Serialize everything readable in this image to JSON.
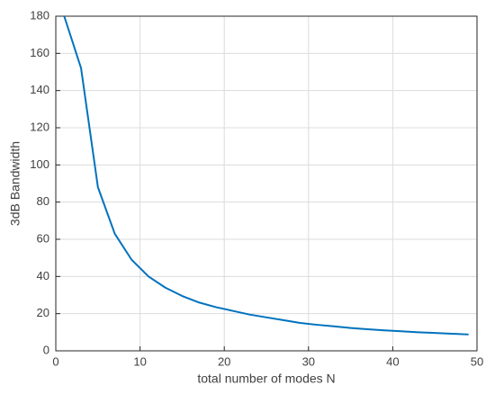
{
  "chart_data": {
    "type": "line",
    "x_label": "total number of modes N",
    "y_label": "3dB Bandwidth",
    "x": [
      1,
      3,
      5,
      7,
      9,
      11,
      13,
      15,
      17,
      19,
      21,
      23,
      25,
      27,
      29,
      31,
      33,
      35,
      37,
      39,
      41,
      43,
      45,
      47,
      49
    ],
    "series": [
      {
        "color": "#0072bd",
        "values": [
          180,
          152,
          88,
          63,
          49,
          40,
          34,
          29.5,
          26,
          23.5,
          21.5,
          19.5,
          18,
          16.5,
          15,
          14,
          13.2,
          12.3,
          11.6,
          11,
          10.5,
          10,
          9.6,
          9.2,
          8.8
        ]
      }
    ],
    "xlim": [
      0,
      50
    ],
    "xticks": [
      0,
      10,
      20,
      30,
      40,
      50
    ],
    "ylim": [
      0,
      180
    ],
    "yticks": [
      0,
      20,
      40,
      60,
      80,
      100,
      120,
      140,
      160,
      180
    ],
    "grid": true
  }
}
